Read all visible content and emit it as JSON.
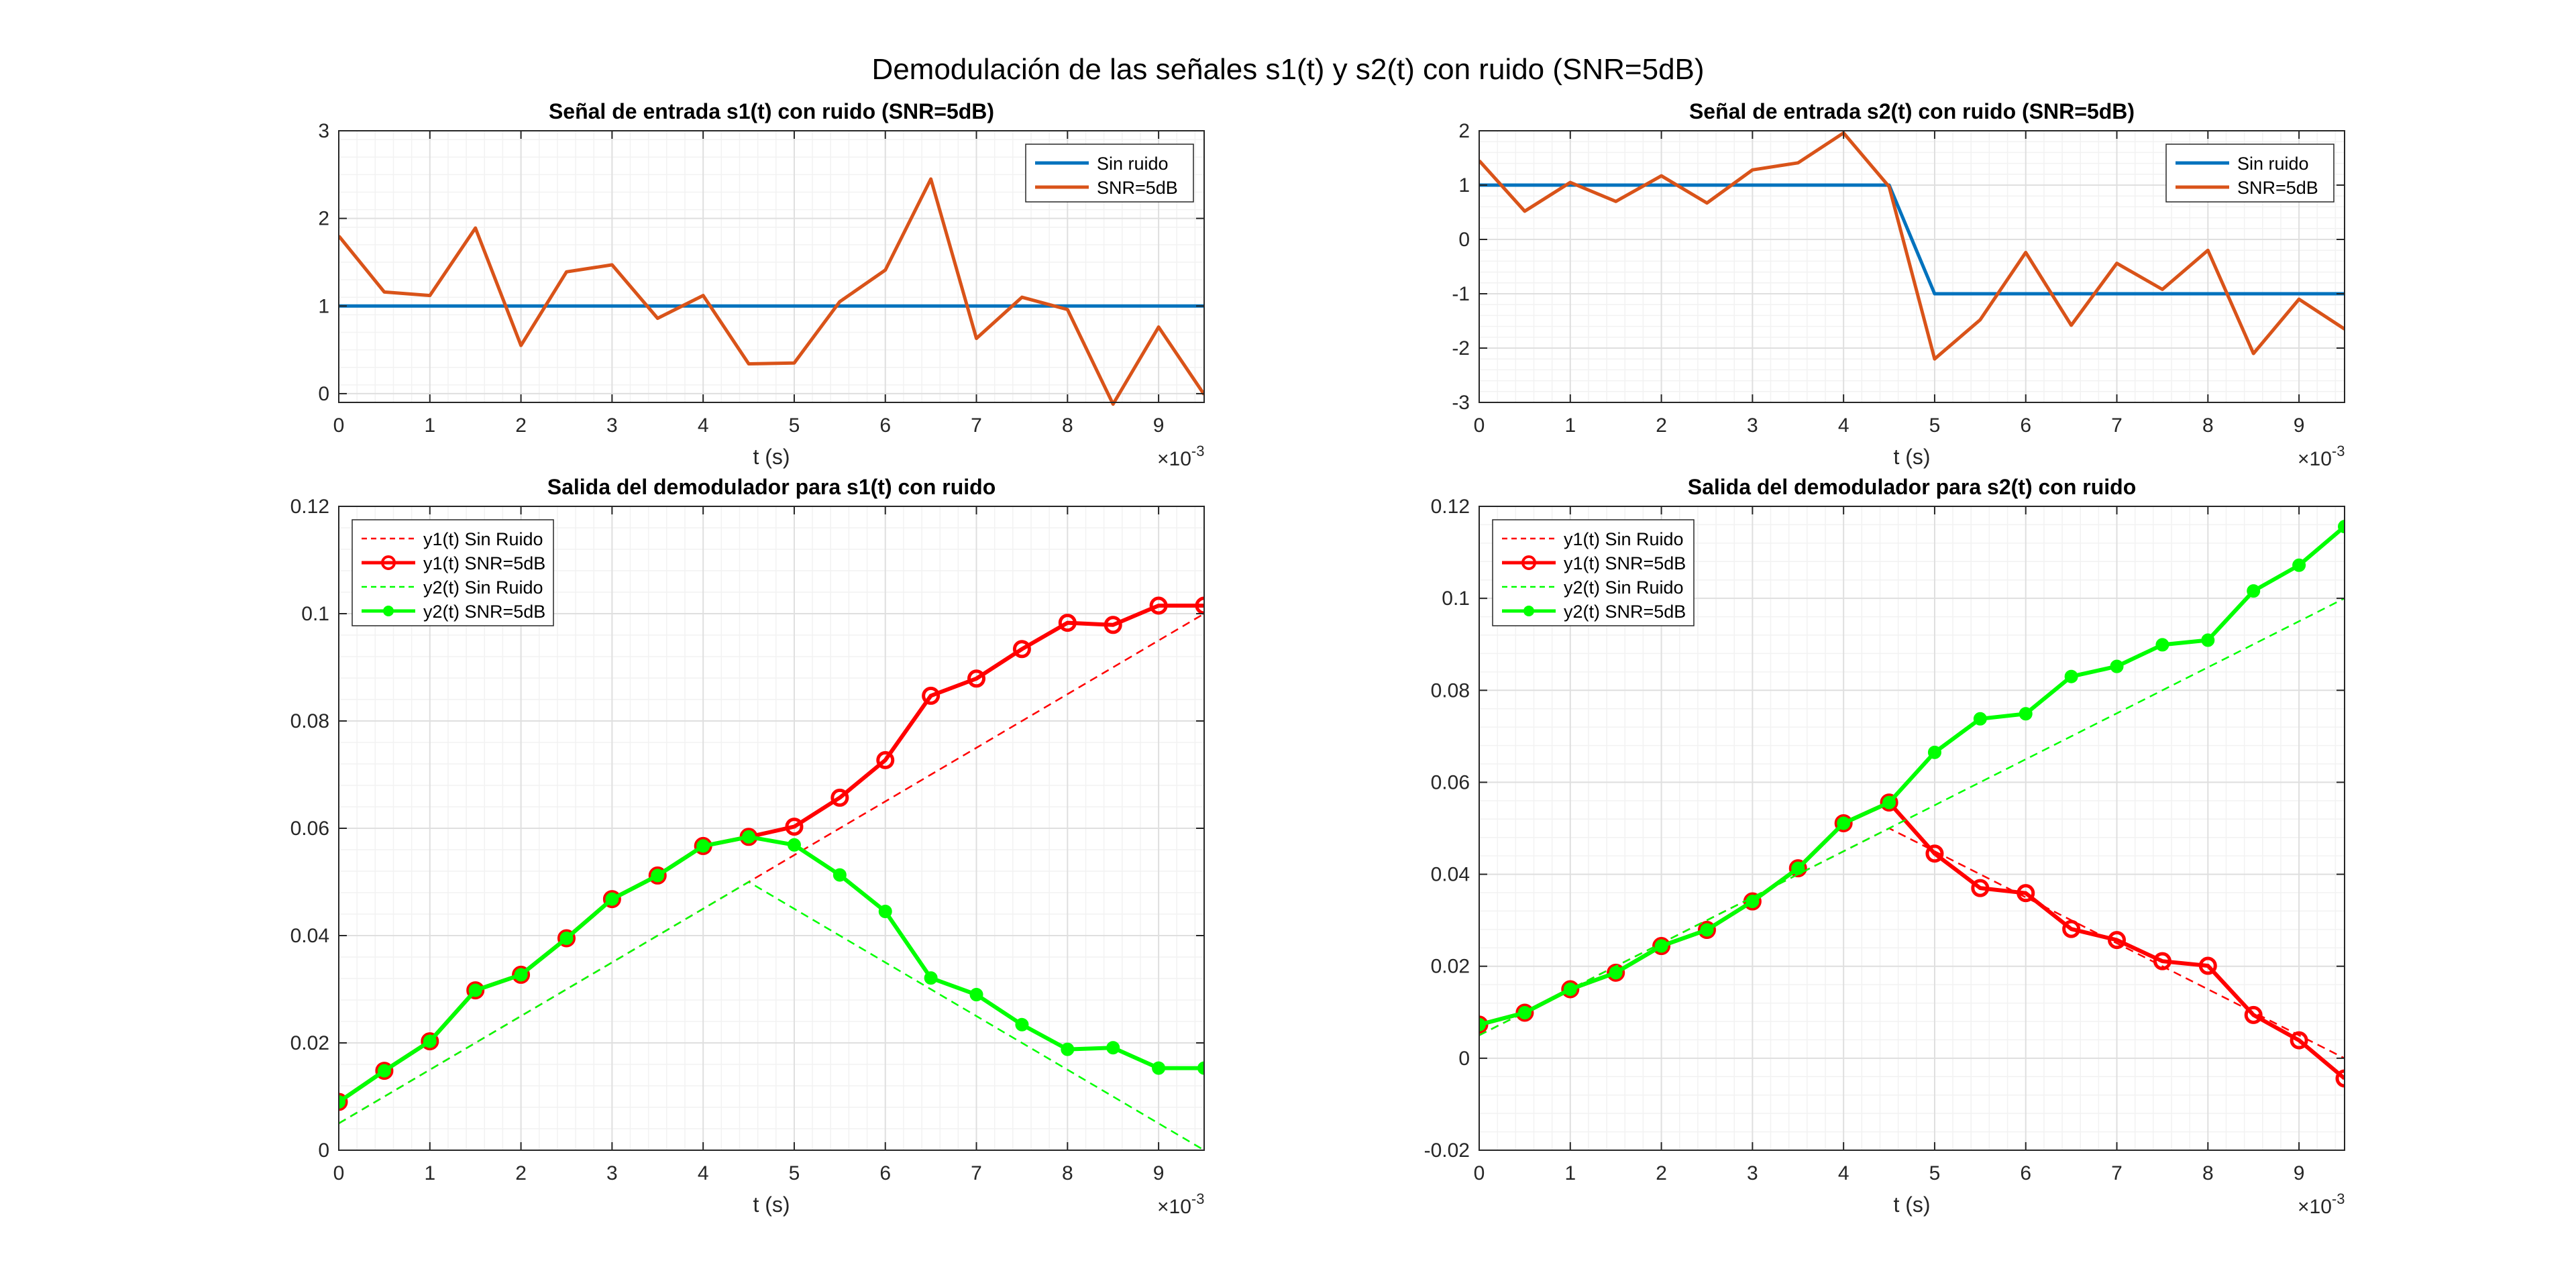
{
  "figure": {
    "suptitle": "Demodulación de las señales s1(t) y s2(t) con ruido (SNR=5dB)"
  },
  "chart_data": [
    {
      "id": "s1",
      "type": "line",
      "title": "Señal de entrada s1(t) con ruido (SNR=5dB)",
      "xlabel": "t (s)",
      "ylabel": "",
      "x_exponent_label": "×10",
      "x_exponent": "-3",
      "xlim": [
        0,
        0.0095
      ],
      "ylim": [
        -0.1,
        3
      ],
      "xticks": [
        0,
        0.001,
        0.002,
        0.003,
        0.004,
        0.005,
        0.006,
        0.007,
        0.008,
        0.009
      ],
      "xtick_labels": [
        "0",
        "1",
        "2",
        "3",
        "4",
        "5",
        "6",
        "7",
        "8",
        "9"
      ],
      "yticks": [
        0,
        1,
        2,
        3
      ],
      "ytick_labels": [
        "0",
        "1",
        "2",
        "3"
      ],
      "grid": true,
      "legend_position": "top-right",
      "x": [
        0,
        0.0005,
        0.001,
        0.0015,
        0.002,
        0.0025,
        0.003,
        0.0035,
        0.004,
        0.0045,
        0.005,
        0.0055,
        0.006,
        0.0065,
        0.007,
        0.0075,
        0.008,
        0.0085,
        0.009,
        0.0095
      ],
      "series": [
        {
          "name": "Sin ruido",
          "color": "#0072BD",
          "width": 5,
          "dash": "",
          "marker": "none",
          "values": [
            1,
            1,
            1,
            1,
            1,
            1,
            1,
            1,
            1,
            1,
            1,
            1,
            1,
            1,
            1,
            1,
            1,
            1,
            1,
            1
          ]
        },
        {
          "name": "SNR=5dB",
          "color": "#D95319",
          "width": 5,
          "dash": "",
          "marker": "none",
          "values": [
            1.8,
            1.16,
            1.12,
            1.89,
            0.55,
            1.39,
            1.47,
            0.86,
            1.12,
            0.34,
            0.35,
            1.05,
            1.41,
            2.45,
            0.63,
            1.1,
            0.96,
            -0.12,
            0.76,
            -0.01
          ]
        }
      ]
    },
    {
      "id": "s2",
      "type": "line",
      "title": "Señal de entrada s2(t) con ruido (SNR=5dB)",
      "xlabel": "t (s)",
      "ylabel": "",
      "x_exponent_label": "×10",
      "x_exponent": "-3",
      "xlim": [
        0,
        0.0095
      ],
      "ylim": [
        -3,
        2
      ],
      "xticks": [
        0,
        0.001,
        0.002,
        0.003,
        0.004,
        0.005,
        0.006,
        0.007,
        0.008,
        0.009
      ],
      "xtick_labels": [
        "0",
        "1",
        "2",
        "3",
        "4",
        "5",
        "6",
        "7",
        "8",
        "9"
      ],
      "yticks": [
        -3,
        -2,
        -1,
        0,
        1,
        2
      ],
      "ytick_labels": [
        "-3",
        "-2",
        "-1",
        "0",
        "1",
        "2"
      ],
      "grid": true,
      "legend_position": "top-right",
      "x": [
        0,
        0.0005,
        0.001,
        0.0015,
        0.002,
        0.0025,
        0.003,
        0.0035,
        0.004,
        0.0045,
        0.005,
        0.0055,
        0.006,
        0.0065,
        0.007,
        0.0075,
        0.008,
        0.0085,
        0.009,
        0.0095
      ],
      "series": [
        {
          "name": "Sin ruido",
          "color": "#0072BD",
          "width": 5,
          "dash": "",
          "marker": "none",
          "values": [
            1,
            1,
            1,
            1,
            1,
            1,
            1,
            1,
            1,
            1,
            -1,
            -1,
            -1,
            -1,
            -1,
            -1,
            -1,
            -1,
            -1,
            -1
          ]
        },
        {
          "name": "SNR=5dB",
          "color": "#D95319",
          "width": 5,
          "dash": "",
          "marker": "none",
          "values": [
            1.45,
            0.52,
            1.05,
            0.7,
            1.17,
            0.67,
            1.28,
            1.41,
            1.96,
            0.97,
            -2.2,
            -1.48,
            -0.24,
            -1.58,
            -0.44,
            -0.92,
            -0.2,
            -2.1,
            -1.1,
            -1.65
          ]
        }
      ]
    },
    {
      "id": "d1",
      "type": "line",
      "title": "Salida del demodulador para s1(t) con ruido",
      "xlabel": "t (s)",
      "ylabel": "",
      "x_exponent_label": "×10",
      "x_exponent": "-3",
      "xlim": [
        0,
        0.0095
      ],
      "ylim": [
        0,
        0.12
      ],
      "xticks": [
        0,
        0.001,
        0.002,
        0.003,
        0.004,
        0.005,
        0.006,
        0.007,
        0.008,
        0.009
      ],
      "xtick_labels": [
        "0",
        "1",
        "2",
        "3",
        "4",
        "5",
        "6",
        "7",
        "8",
        "9"
      ],
      "yticks": [
        0,
        0.02,
        0.04,
        0.06,
        0.08,
        0.1,
        0.12
      ],
      "ytick_labels": [
        "0",
        "0.02",
        "0.04",
        "0.06",
        "0.08",
        "0.1",
        "0.12"
      ],
      "grid": true,
      "legend_position": "top-left",
      "x": [
        0,
        0.0005,
        0.001,
        0.0015,
        0.002,
        0.0025,
        0.003,
        0.0035,
        0.004,
        0.0045,
        0.005,
        0.0055,
        0.006,
        0.0065,
        0.007,
        0.0075,
        0.008,
        0.0085,
        0.009,
        0.0095
      ],
      "series": [
        {
          "name": "y1(t) Sin Ruido",
          "color": "#FF0000",
          "width": 2.5,
          "dash": "12 8",
          "marker": "none",
          "values": [
            0.005,
            0.01,
            0.015,
            0.02,
            0.025,
            0.03,
            0.035,
            0.04,
            0.045,
            0.05,
            0.055,
            0.06,
            0.065,
            0.07,
            0.075,
            0.08,
            0.085,
            0.09,
            0.095,
            0.1
          ]
        },
        {
          "name": "y1(t) SNR=5dB",
          "color": "#FF0000",
          "width": 6,
          "dash": "",
          "marker": "circle",
          "values": [
            0.009,
            0.0148,
            0.0203,
            0.0298,
            0.0327,
            0.0395,
            0.0468,
            0.0512,
            0.0567,
            0.0584,
            0.0603,
            0.0657,
            0.0727,
            0.0847,
            0.0879,
            0.0934,
            0.0983,
            0.0979,
            0.1015,
            0.1015
          ]
        },
        {
          "name": "y2(t) Sin Ruido",
          "color": "#00FF00",
          "width": 2.5,
          "dash": "12 8",
          "marker": "none",
          "values": [
            0.005,
            0.01,
            0.015,
            0.02,
            0.025,
            0.03,
            0.035,
            0.04,
            0.045,
            0.05,
            0.045,
            0.04,
            0.035,
            0.03,
            0.025,
            0.02,
            0.015,
            0.01,
            0.005,
            0.0
          ]
        },
        {
          "name": "y2(t) SNR=5dB",
          "color": "#00FF00",
          "width": 6,
          "dash": "",
          "marker": "dot",
          "values": [
            0.009,
            0.0148,
            0.0203,
            0.0298,
            0.0327,
            0.0395,
            0.0468,
            0.0512,
            0.0567,
            0.0584,
            0.0569,
            0.0513,
            0.0445,
            0.0321,
            0.029,
            0.0234,
            0.0188,
            0.0191,
            0.0153,
            0.0153
          ]
        }
      ]
    },
    {
      "id": "d2",
      "type": "line",
      "title": "Salida del demodulador para s2(t) con ruido",
      "xlabel": "t (s)",
      "ylabel": "",
      "x_exponent_label": "×10",
      "x_exponent": "-3",
      "xlim": [
        0,
        0.0095
      ],
      "ylim": [
        -0.02,
        0.12
      ],
      "xticks": [
        0,
        0.001,
        0.002,
        0.003,
        0.004,
        0.005,
        0.006,
        0.007,
        0.008,
        0.009
      ],
      "xtick_labels": [
        "0",
        "1",
        "2",
        "3",
        "4",
        "5",
        "6",
        "7",
        "8",
        "9"
      ],
      "yticks": [
        -0.02,
        0,
        0.02,
        0.04,
        0.06,
        0.08,
        0.1,
        0.12
      ],
      "ytick_labels": [
        "-0.02",
        "0",
        "0.02",
        "0.04",
        "0.06",
        "0.08",
        "0.1",
        "0.12"
      ],
      "grid": true,
      "legend_position": "top-left",
      "x": [
        0,
        0.0005,
        0.001,
        0.0015,
        0.002,
        0.0025,
        0.003,
        0.0035,
        0.004,
        0.0045,
        0.005,
        0.0055,
        0.006,
        0.0065,
        0.007,
        0.0075,
        0.008,
        0.0085,
        0.009,
        0.0095
      ],
      "series": [
        {
          "name": "y1(t) Sin Ruido",
          "color": "#FF0000",
          "width": 2.5,
          "dash": "12 8",
          "marker": "none",
          "values": [
            0.005,
            0.01,
            0.015,
            0.02,
            0.025,
            0.03,
            0.035,
            0.04,
            0.045,
            0.05,
            0.045,
            0.04,
            0.035,
            0.03,
            0.025,
            0.02,
            0.015,
            0.01,
            0.005,
            0.0
          ]
        },
        {
          "name": "y1(t) SNR=5dB",
          "color": "#FF0000",
          "width": 6,
          "dash": "",
          "marker": "circle",
          "values": [
            0.0073,
            0.0099,
            0.015,
            0.0186,
            0.0244,
            0.0279,
            0.0341,
            0.0413,
            0.0511,
            0.0556,
            0.0445,
            0.037,
            0.0359,
            0.0281,
            0.0257,
            0.0211,
            0.0201,
            0.0094,
            0.0039,
            -0.0044
          ]
        },
        {
          "name": "y2(t) Sin Ruido",
          "color": "#00FF00",
          "width": 2.5,
          "dash": "12 8",
          "marker": "none",
          "values": [
            0.005,
            0.01,
            0.015,
            0.02,
            0.025,
            0.03,
            0.035,
            0.04,
            0.045,
            0.05,
            0.055,
            0.06,
            0.065,
            0.07,
            0.075,
            0.08,
            0.085,
            0.09,
            0.095,
            0.1
          ]
        },
        {
          "name": "y2(t) SNR=5dB",
          "color": "#00FF00",
          "width": 6,
          "dash": "",
          "marker": "dot",
          "values": [
            0.0073,
            0.0099,
            0.015,
            0.0186,
            0.0244,
            0.0279,
            0.0341,
            0.0413,
            0.0511,
            0.0556,
            0.0665,
            0.0738,
            0.0749,
            0.083,
            0.0852,
            0.0899,
            0.0909,
            0.1016,
            0.1072,
            0.1156
          ]
        }
      ]
    }
  ]
}
